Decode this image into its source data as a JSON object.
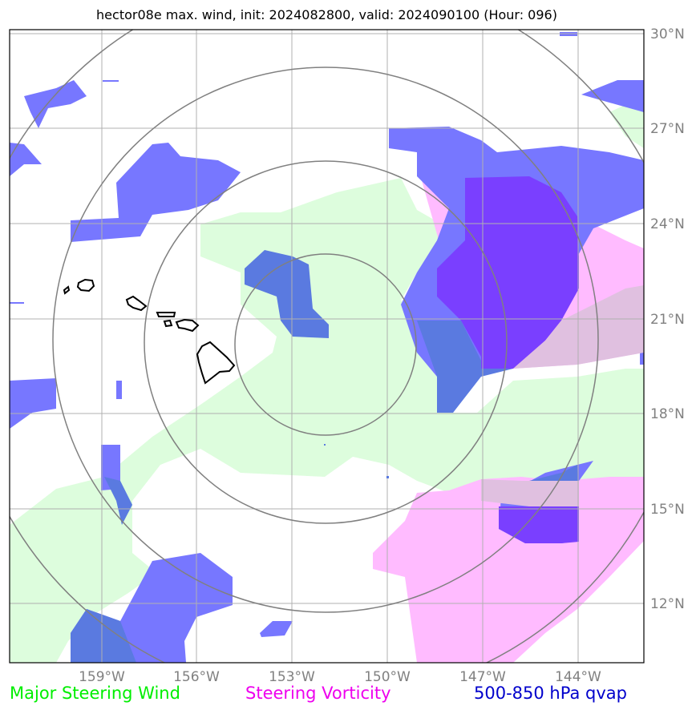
{
  "title": "hector08e max. wind, init: 2024082800, valid: 2024090100 (Hour: 096)",
  "map": {
    "lon_ticks": [
      "159°W",
      "156°W",
      "153°W",
      "150°W",
      "147°W",
      "144°W"
    ],
    "lat_ticks": [
      "30°N",
      "27°N",
      "24°N",
      "21°N",
      "18°N",
      "15°N",
      "12°N"
    ],
    "extent": {
      "lon_min": -161.1,
      "lon_max": -141.2,
      "lat_min": 10.2,
      "lat_max": 30.2
    },
    "range_rings": {
      "center_lon": -152,
      "center_lat": 20.2,
      "count": 4
    },
    "gridlines": true,
    "land": "Hawaiian Islands outline"
  },
  "legend": {
    "wind": "Major Steering Wind",
    "vorticity": "Steering Vorticity",
    "qvap": "500-850 hPa qvap"
  },
  "colors": {
    "wind_fill": "#ddfddd",
    "vorticity_fill": "#ffbbff",
    "qvap_fill": "#7777ff",
    "overlap_fill": "#5a7ae0",
    "deep_fill": "#7a3fff",
    "ring": "#808080",
    "grid": "#b0b0b0"
  }
}
